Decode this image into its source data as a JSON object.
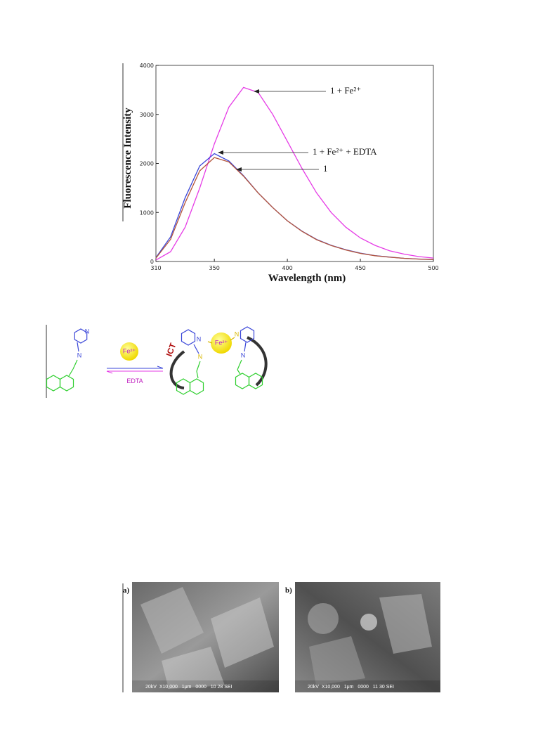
{
  "chart_data": {
    "type": "line",
    "xlabel": "Wavelength (nm)",
    "ylabel": "Fluorescence Intensity",
    "x": [
      310,
      320,
      330,
      340,
      350,
      360,
      370,
      380,
      390,
      400,
      410,
      420,
      430,
      440,
      450,
      460,
      470,
      480,
      490,
      500
    ],
    "series": [
      {
        "name": "1 + Fe²⁺",
        "color": "#e63ce6",
        "values": [
          30,
          200,
          700,
          1500,
          2400,
          3150,
          3550,
          3450,
          3000,
          2450,
          1900,
          1400,
          1000,
          700,
          480,
          330,
          220,
          150,
          100,
          70
        ]
      },
      {
        "name": "1 + Fe²⁺ + EDTA",
        "color": "#3a46d8",
        "values": [
          80,
          500,
          1300,
          1950,
          2200,
          2050,
          1750,
          1400,
          1100,
          830,
          620,
          450,
          330,
          240,
          170,
          120,
          90,
          65,
          50,
          40
        ]
      },
      {
        "name": "1",
        "color": "#b5553a",
        "values": [
          70,
          450,
          1200,
          1850,
          2120,
          2030,
          1740,
          1400,
          1100,
          830,
          615,
          445,
          325,
          235,
          165,
          118,
          88,
          64,
          49,
          39
        ]
      }
    ],
    "xlim": [
      310,
      500
    ],
    "xticks": [
      310,
      350,
      400,
      450,
      500
    ],
    "ylim": [
      0,
      4000
    ],
    "yticks": [
      0,
      1000,
      2000,
      3000,
      4000
    ],
    "grid": false
  },
  "scheme": {
    "metal": "Fe²⁺",
    "reagent": "EDTA",
    "process": "ICT",
    "atom": "N"
  },
  "sem_figure": {
    "panels": [
      {
        "label": "a)",
        "caption": "20kV  X10,000   1μm   0000   10 28 SEI"
      },
      {
        "label": "b)",
        "caption": "20kV  X10,000   1μm   0000   11 30 SEI"
      }
    ]
  }
}
